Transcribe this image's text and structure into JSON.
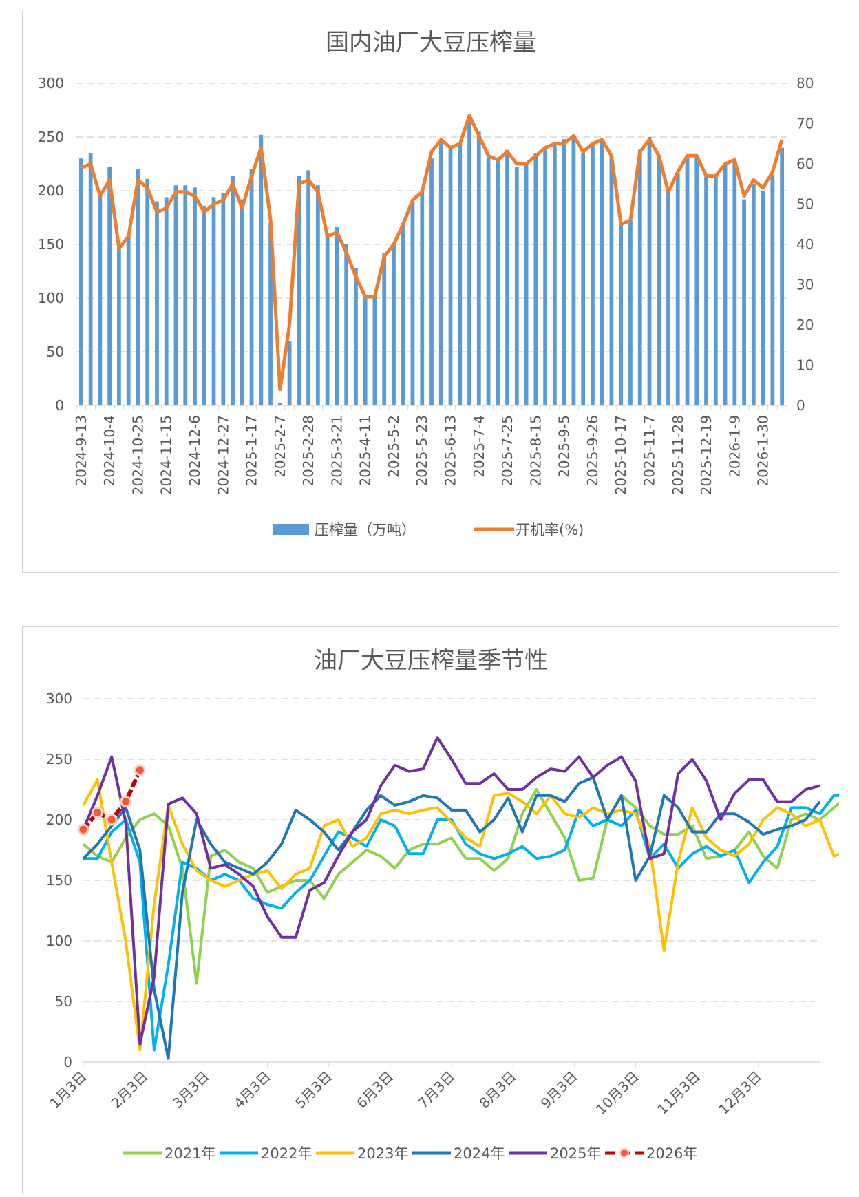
{
  "chart_data": [
    {
      "type": "bar+line",
      "title": "国内油厂大豆压榨量",
      "xlabel": "",
      "ylabel": "",
      "y_left_lim": [
        0,
        300
      ],
      "y_left_ticks": [
        0,
        50,
        100,
        150,
        200,
        250,
        300
      ],
      "y_right_lim": [
        0,
        80
      ],
      "y_right_ticks": [
        0,
        10,
        20,
        30,
        40,
        50,
        60,
        70,
        80
      ],
      "grid": true,
      "legend_position": "bottom",
      "x_tick_labels": [
        "2024-9-13",
        "2024-10-4",
        "2024-10-25",
        "2024-11-15",
        "2024-12-6",
        "2024-12-27",
        "2025-1-17",
        "2025-2-7",
        "2025-2-28",
        "2025-3-21",
        "2025-4-11",
        "2025-5-2",
        "2025-5-23",
        "2025-6-13",
        "2025-7-4",
        "2025-7-25",
        "2025-8-15",
        "2025-9-5",
        "2025-9-26",
        "2025-10-17",
        "2025-11-7",
        "2025-11-28",
        "2025-12-19",
        "2026-1-9",
        "2026-1-30"
      ],
      "x_tick_every": 3,
      "series": [
        {
          "name": "压榨量（万吨）",
          "axis": "left",
          "kind": "bar",
          "color": "#5b9bd5",
          "values": [
            230,
            235,
            200,
            222,
            148,
            160,
            220,
            211,
            190,
            194,
            205,
            205,
            203,
            186,
            194,
            198,
            214,
            192,
            220,
            252,
            170,
            2,
            60,
            214,
            219,
            205,
            160,
            166,
            150,
            128,
            103,
            103,
            142,
            150,
            170,
            190,
            200,
            230,
            245,
            240,
            245,
            270,
            255,
            231,
            230,
            238,
            222,
            225,
            235,
            240,
            242,
            248,
            250,
            235,
            245,
            245,
            232,
            168,
            172,
            238,
            250,
            232,
            200,
            216,
            232,
            233,
            215,
            215,
            225,
            227,
            192,
            206,
            200,
            215,
            240
          ]
        },
        {
          "name": "开机率(%)",
          "axis": "right",
          "kind": "line",
          "color": "#ed7d31",
          "values": [
            59,
            60,
            52,
            56,
            39,
            42,
            56,
            54,
            48,
            49,
            53,
            53,
            52,
            48,
            50,
            51,
            55,
            49,
            57,
            64,
            46,
            4,
            20,
            55,
            56,
            53,
            42,
            43,
            38,
            32,
            27,
            27,
            37,
            40,
            45,
            51,
            53,
            63,
            66,
            64,
            65,
            72,
            67,
            62,
            61,
            63,
            60,
            60,
            62,
            64,
            65,
            65,
            67,
            63,
            65,
            66,
            62,
            45,
            46,
            63,
            66,
            62,
            53,
            58,
            62,
            62,
            57,
            57,
            60,
            61,
            52,
            56,
            54,
            58,
            66
          ]
        }
      ]
    },
    {
      "type": "line",
      "title": "油厂大豆压榨量季节性",
      "xlabel": "",
      "ylabel": "",
      "ylim": [
        0,
        300
      ],
      "y_ticks": [
        0,
        50,
        100,
        150,
        200,
        250,
        300
      ],
      "grid": true,
      "legend_position": "bottom",
      "x_tick_labels": [
        "1月3日",
        "2月3日",
        "3月3日",
        "4月3日",
        "5月3日",
        "6月3日",
        "7月3日",
        "8月3日",
        "9月3日",
        "10月3日",
        "11月3日",
        "12月3日"
      ],
      "x_weeks": 52,
      "series": [
        {
          "name": "2021年",
          "color": "#92d050",
          "values": [
            180,
            170,
            165,
            185,
            200,
            205,
            195,
            160,
            65,
            170,
            175,
            165,
            160,
            140,
            145,
            150,
            150,
            135,
            155,
            165,
            175,
            170,
            160,
            175,
            180,
            180,
            185,
            168,
            168,
            158,
            168,
            205,
            225,
            205,
            185,
            150,
            152,
            200,
            220,
            210,
            195,
            188,
            188,
            195,
            168,
            170,
            175,
            190,
            170,
            160,
            200,
            205,
            200,
            210,
            220,
            208,
            190,
            185,
            180,
            167
          ]
        },
        {
          "name": "2022年",
          "color": "#00b0f0",
          "values": [
            168,
            168,
            190,
            200,
            165,
            10,
            80,
            165,
            160,
            150,
            155,
            150,
            135,
            130,
            127,
            140,
            150,
            170,
            190,
            185,
            178,
            200,
            195,
            172,
            172,
            200,
            200,
            180,
            172,
            168,
            172,
            178,
            168,
            170,
            175,
            208,
            195,
            200,
            195,
            208,
            168,
            180,
            160,
            172,
            178,
            170,
            175,
            148,
            165,
            178,
            210,
            210,
            205,
            220,
            220,
            215
          ]
        },
        {
          "name": "2023年",
          "color": "#ffc000",
          "values": [
            212,
            233,
            165,
            100,
            10,
            130,
            212,
            180,
            158,
            150,
            145,
            150,
            155,
            158,
            143,
            155,
            160,
            195,
            200,
            178,
            185,
            205,
            208,
            205,
            208,
            210,
            198,
            185,
            178,
            220,
            222,
            215,
            205,
            220,
            205,
            202,
            210,
            205,
            208,
            205,
            178,
            92,
            165,
            210,
            185,
            175,
            170,
            180,
            200,
            210,
            205,
            195,
            200,
            170,
            175
          ]
        },
        {
          "name": "2024年",
          "color": "#1f77b4",
          "values": [
            168,
            180,
            195,
            210,
            175,
            60,
            3,
            140,
            200,
            180,
            165,
            160,
            155,
            165,
            180,
            208,
            200,
            190,
            175,
            190,
            208,
            220,
            212,
            215,
            220,
            218,
            208,
            208,
            190,
            200,
            218,
            190,
            220,
            220,
            215,
            230,
            235,
            200,
            220,
            150,
            170,
            220,
            210,
            190,
            190,
            205,
            205,
            198,
            188,
            192,
            195,
            200,
            215
          ]
        },
        {
          "name": "2025年",
          "color": "#7030a0",
          "values": [
            192,
            220,
            252,
            198,
            15,
            70,
            213,
            218,
            205,
            160,
            163,
            155,
            145,
            120,
            103,
            103,
            142,
            148,
            170,
            190,
            200,
            228,
            245,
            240,
            242,
            268,
            250,
            230,
            230,
            238,
            225,
            225,
            235,
            242,
            240,
            252,
            235,
            245,
            252,
            232,
            168,
            172,
            238,
            250,
            232,
            200,
            222,
            233,
            233,
            215,
            215,
            225,
            228
          ]
        },
        {
          "name": "2026年",
          "color": "#c00000",
          "marker": "circle",
          "values": [
            192,
            206,
            200,
            215,
            241
          ]
        }
      ]
    }
  ]
}
